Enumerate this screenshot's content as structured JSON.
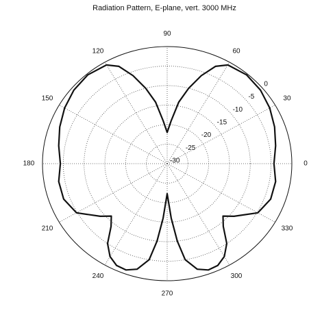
{
  "chart_data": {
    "type": "polar",
    "title": "Radiation Pattern, E-plane, vert. 3000 MHz",
    "x": [
      0,
      10,
      20,
      30,
      40,
      50,
      60,
      65,
      70,
      75,
      80,
      85,
      90,
      95,
      100,
      105,
      110,
      115,
      120,
      130,
      140,
      150,
      160,
      170,
      180,
      190,
      200,
      210,
      220,
      225,
      230,
      235,
      240,
      245,
      250,
      255,
      260,
      263,
      266,
      270,
      274,
      277,
      280,
      285,
      290,
      295,
      300,
      305,
      310,
      315,
      320,
      330,
      340,
      350
    ],
    "values": [
      -4.3,
      -3.5,
      -2.5,
      -1.5,
      -0.7,
      -0.3,
      -0.8,
      -2.5,
      -6,
      -10,
      -14,
      -19,
      -22,
      -19,
      -14,
      -10,
      -6,
      -2.5,
      -0.8,
      -0.3,
      -0.7,
      -1.5,
      -2.5,
      -3.5,
      -4.3,
      -3.5,
      -3.5,
      -4.8,
      -9,
      -11,
      -9,
      -5,
      -2.5,
      -1.2,
      -1,
      -2,
      -5,
      -10,
      -16,
      -22.3,
      -16,
      -10,
      -5,
      -2,
      -1,
      -1.2,
      -2.5,
      -5,
      -9,
      -11,
      -9,
      -4.8,
      -3.5,
      -3.5
    ],
    "color": "#111111",
    "ylim": [
      -30,
      0
    ],
    "yticks": [
      -30,
      -25,
      -20,
      -15,
      -10,
      -5,
      0
    ],
    "xticks": [
      0,
      30,
      60,
      90,
      120,
      150,
      180,
      210,
      240,
      270,
      300,
      330
    ],
    "grid": true
  }
}
